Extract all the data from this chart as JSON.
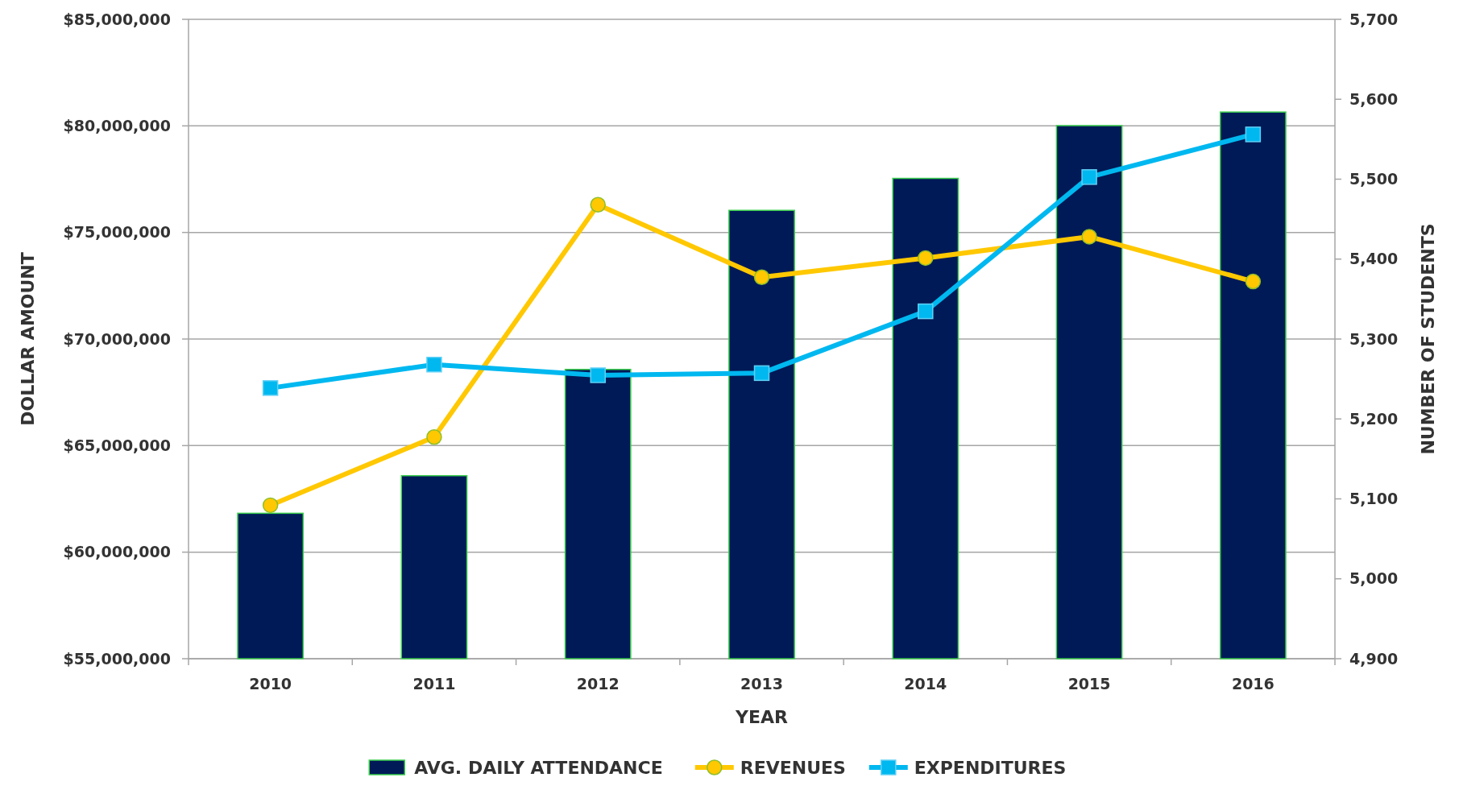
{
  "chart_data": {
    "type": "bar",
    "xlabel": "YEAR",
    "ylabel": "DOLLAR AMOUNT",
    "y2label": "NUMBER OF STUDENTS",
    "categories": [
      "2010",
      "2011",
      "2012",
      "2013",
      "2014",
      "2015",
      "2016"
    ],
    "series": [
      {
        "name": "AVG. DAILY ATTENDANCE",
        "axis": "y2",
        "color": "#001a57",
        "values": [
          5082,
          5129,
          5262,
          5461,
          5501,
          5567,
          5584
        ]
      },
      {
        "name": "REVENUES",
        "type": "line",
        "marker": "circle",
        "color": "#ffc800",
        "values": [
          62200000,
          65400000,
          76300000,
          72900000,
          73800000,
          74800000,
          72700000
        ]
      },
      {
        "name": "EXPENDITURES",
        "type": "line",
        "marker": "square",
        "color": "#00b8f0",
        "values": [
          67700000,
          68800000,
          68300000,
          68400000,
          71300000,
          77600000,
          79600000
        ]
      }
    ],
    "ylim": [
      55000000,
      85000000
    ],
    "yticks": [
      {
        "value": 55000000,
        "label": "$55,000,000"
      },
      {
        "value": 60000000,
        "label": "$60,000,000"
      },
      {
        "value": 65000000,
        "label": "$65,000,000"
      },
      {
        "value": 70000000,
        "label": "$70,000,000"
      },
      {
        "value": 75000000,
        "label": "$75,000,000"
      },
      {
        "value": 80000000,
        "label": "$80,000,000"
      },
      {
        "value": 85000000,
        "label": "$85,000,000"
      }
    ],
    "y2lim": [
      4900,
      5700
    ],
    "y2ticks": [
      {
        "value": 4900,
        "label": "4,900"
      },
      {
        "value": 5000,
        "label": "5,000"
      },
      {
        "value": 5100,
        "label": "5,100"
      },
      {
        "value": 5200,
        "label": "5,200"
      },
      {
        "value": 5300,
        "label": "5,300"
      },
      {
        "value": 5400,
        "label": "5,400"
      },
      {
        "value": 5500,
        "label": "5,500"
      },
      {
        "value": 5600,
        "label": "5,600"
      },
      {
        "value": 5700,
        "label": "5,700"
      }
    ],
    "grid": "y",
    "legend": "bottom"
  }
}
